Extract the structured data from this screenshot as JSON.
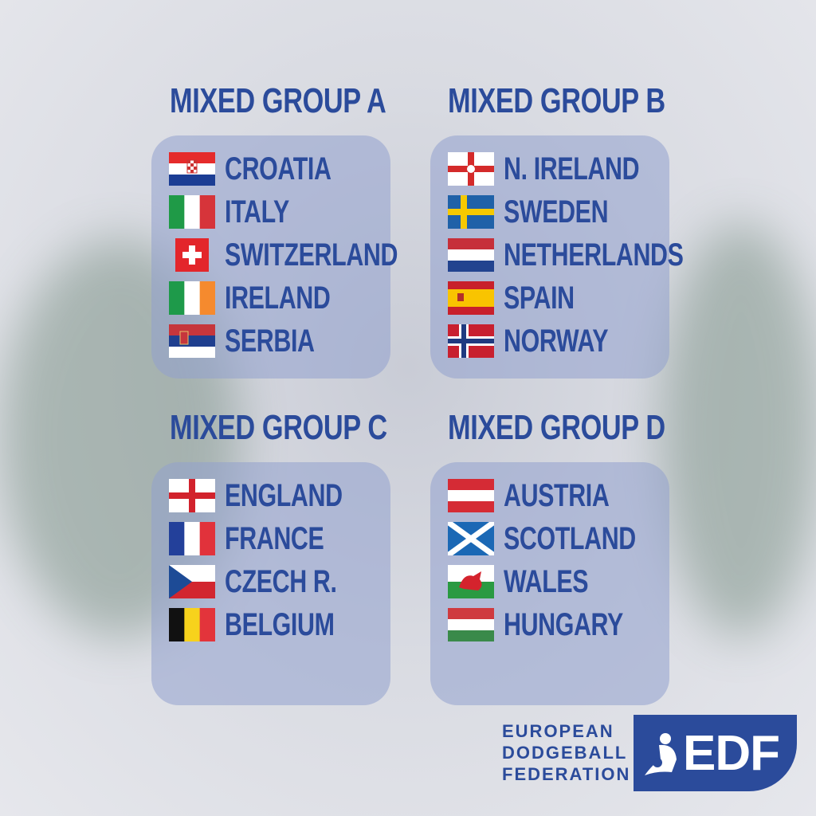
{
  "colors": {
    "text": "#2b4b9b",
    "box": "#91a0cd",
    "brand": "#2b4b9b"
  },
  "groups": [
    {
      "title": "MIXED GROUP A",
      "teams": [
        {
          "name": "CROATIA",
          "flag": "croatia"
        },
        {
          "name": "ITALY",
          "flag": "italy"
        },
        {
          "name": "SWITZERLAND",
          "flag": "switzerland"
        },
        {
          "name": "IRELAND",
          "flag": "ireland"
        },
        {
          "name": "SERBIA",
          "flag": "serbia"
        }
      ]
    },
    {
      "title": "MIXED GROUP B",
      "teams": [
        {
          "name": "N. IRELAND",
          "flag": "northern-ireland"
        },
        {
          "name": "SWEDEN",
          "flag": "sweden"
        },
        {
          "name": "NETHERLANDS",
          "flag": "netherlands"
        },
        {
          "name": "SPAIN",
          "flag": "spain"
        },
        {
          "name": "NORWAY",
          "flag": "norway"
        }
      ]
    },
    {
      "title": "MIXED GROUP C",
      "teams": [
        {
          "name": "ENGLAND",
          "flag": "england"
        },
        {
          "name": "FRANCE",
          "flag": "france"
        },
        {
          "name": "CZECH R.",
          "flag": "czech"
        },
        {
          "name": "BELGIUM",
          "flag": "belgium"
        }
      ]
    },
    {
      "title": "MIXED GROUP D",
      "teams": [
        {
          "name": "AUSTRIA",
          "flag": "austria"
        },
        {
          "name": "SCOTLAND",
          "flag": "scotland"
        },
        {
          "name": "WALES",
          "flag": "wales"
        },
        {
          "name": "HUNGARY",
          "flag": "hungary"
        }
      ]
    }
  ],
  "logo": {
    "line1": "EUROPEAN",
    "line2": "DODGEBALL",
    "line3": "FEDERATION",
    "mark": "EDF",
    "icon": "dodgeball-player-icon"
  }
}
